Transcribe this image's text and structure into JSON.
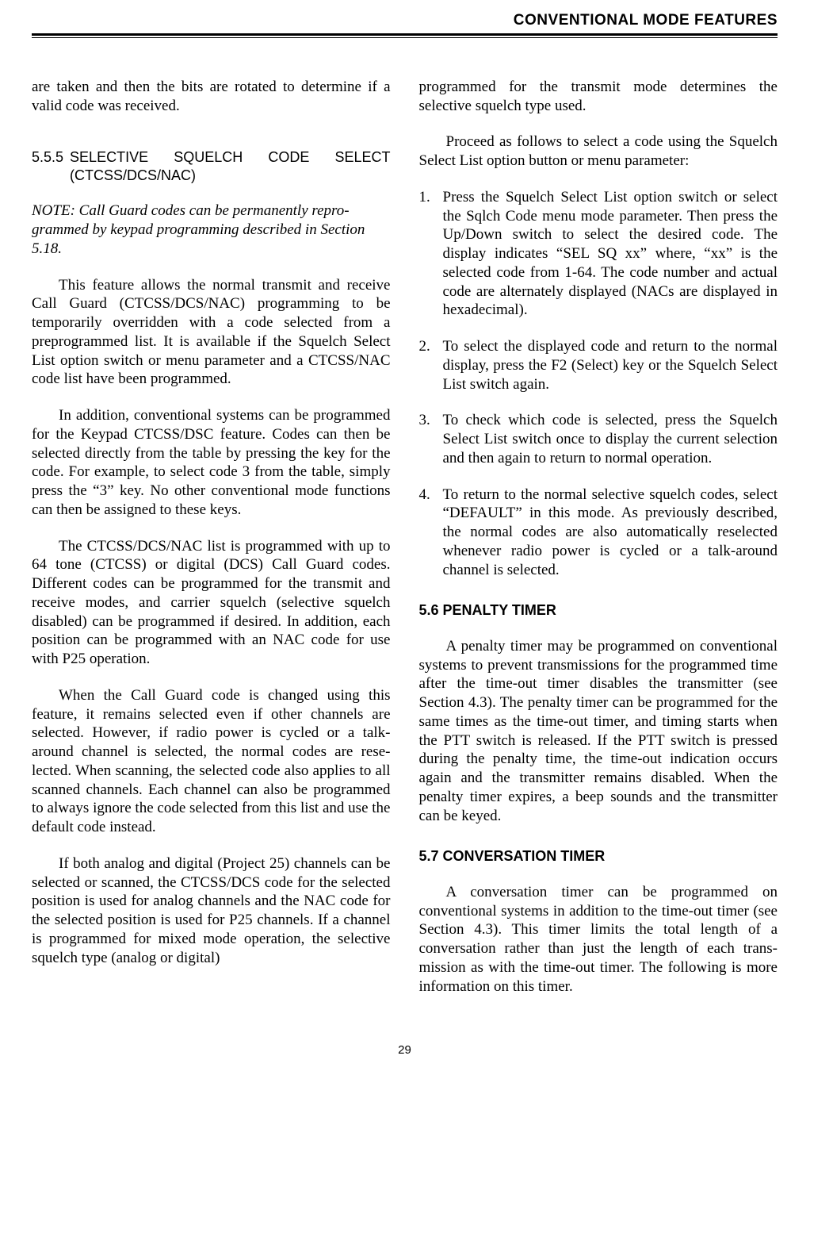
{
  "running_head": "CONVENTIONAL MODE FEATURES",
  "page_number": "29",
  "left_column": {
    "p1": "are taken and then the bits are rotated to determine if a valid code was received.",
    "sec_555_num": "5.5.5",
    "sec_555_title": "SELECTIVE SQUELCH CODE SELECT (CTCSS/DCS/NAC)",
    "note": "NOTE: Call Guard codes can be permanently repro­grammed by keypad programming described in Section 5.18.",
    "p2": "This feature allows the normal transmit and receive Call Guard (CTCSS/DCS/NAC) program­ming to be temporarily overridden with a code selected from a preprogrammed list. It is available if the Squelch Select List option switch or menu param­eter and a CTCSS/NAC code list have been programmed.",
    "p3": "In addition, conventional systems can be programmed for the Keypad CTCSS/DSC feature. Codes can then be selected directly from the table by pressing the key for the code. For example, to select code 3 from the table, simply press the “3” key. No other conventional mode functions can then be assigned to these keys.",
    "p4": "The CTCSS/DCS/NAC list is programmed with up to 64 tone (CTCSS) or digital (DCS) Call Guard codes. Different codes can be programmed for the transmit and receive modes, and carrier squelch (selec­tive squelch disabled) can be programmed if desired. In addition, each position can be programmed with an NAC code for use with P25 operation.",
    "p5": "When the Call Guard code is changed using this feature, it remains selected even if other channels are selected. However, if radio power is cycled or a talk-around channel is selected, the normal codes are rese­lected. When scanning, the selected code also applies to all scanned channels. Each channel can also be programmed to always ignore the code selected from this list and use the default code instead.",
    "p6": "If both analog and digital (Project 25) channels can be selected or scanned, the CTCSS/DCS code for the selected position is used for analog channels and the NAC code for the selected position is used for P25 channels. If a channel is programmed for mixed mode operation, the selective squelch type (analog or digital)"
  },
  "right_column": {
    "p1": "programmed for the transmit mode determines the selective squelch type used.",
    "p2": "Proceed as follows to select a code using the Squelch Select List option button or menu parameter:",
    "list": [
      {
        "n": "1.",
        "t": "Press the Squelch Select List option switch or select the Sqlch Code menu mode parameter. Then press the Up/Down switch to select the desired code. The display indicates “SEL SQ xx” where, “xx” is the selected code from 1-64. The code number and actual code are alternately displayed (NACs are displayed in hexadecimal)."
      },
      {
        "n": "2.",
        "t": "To select the displayed code and return to the normal display, press the F2 (Select) key or the Squelch Select List switch again."
      },
      {
        "n": "3.",
        "t": "To check which code is selected, press the Squelch Select List switch once to display the current selec­tion and then again to return to normal operation."
      },
      {
        "n": "4.",
        "t": "To return to the normal selective squelch codes, select “DEFAULT” in this mode. As previously described, the normal codes are also automatically reselected whenever radio power is cycled or a talk-around channel is selected."
      }
    ],
    "sec_56_title": "5.6 PENALTY TIMER",
    "p56": "A penalty timer may be programmed on conven­tional systems to prevent transmissions for the programmed time after the time-out timer disables the transmitter (see Section 4.3). The penalty timer can be programmed for the same times as the time-out timer, and timing starts when the PTT switch is released. If the PTT switch is pressed during the penalty time, the time-out indication occurs again and the transmitter remains disabled. When the penalty timer expires, a beep sounds and the transmitter can be keyed.",
    "sec_57_title": "5.7 CONVERSATION TIMER",
    "p57": "A conversation timer can be programmed on conventional systems in addition to the time-out timer (see Section 4.3). This timer limits the total length of a conversation rather than just the length of each trans­mission as with the time-out timer. The following is more information on this timer."
  }
}
